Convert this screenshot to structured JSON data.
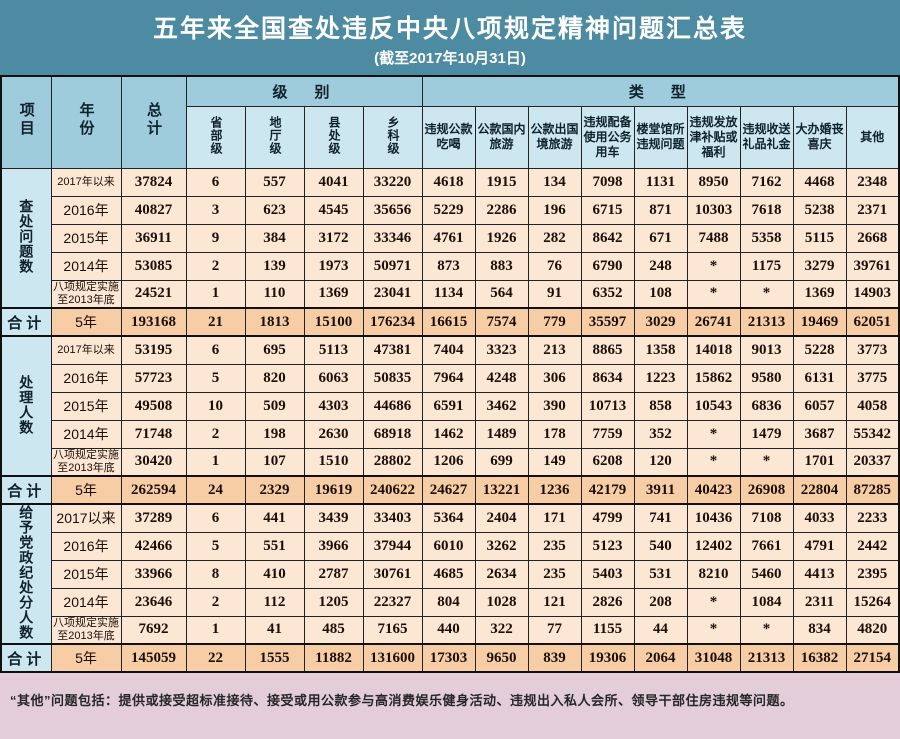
{
  "title": "五年来全国查处违反中央八项规定精神问题汇总表",
  "subtitle": "(截至2017年10月31日)",
  "header": {
    "item": "项目",
    "year": "年份",
    "total": "总计",
    "level_group": "级　别",
    "type_group": "类　型",
    "level_cols": [
      "省部级",
      "地厅级",
      "县处级",
      "乡科级"
    ],
    "type_cols": [
      "违规公款吃喝",
      "公款国内旅游",
      "公款出国境旅游",
      "违规配备使用公务用车",
      "楼堂馆所违规问题",
      "违规发放津补贴或福利",
      "违规收送礼品礼金",
      "大办婚丧喜庆",
      "其他"
    ]
  },
  "blocks": [
    {
      "label": "查处问题数",
      "rows": [
        {
          "year": "2017年以来",
          "values": [
            "37824",
            "6",
            "557",
            "4041",
            "33220",
            "4618",
            "1915",
            "134",
            "7098",
            "1131",
            "8950",
            "7162",
            "4468",
            "2348"
          ]
        },
        {
          "year": "2016年",
          "values": [
            "40827",
            "3",
            "623",
            "4545",
            "35656",
            "5229",
            "2286",
            "196",
            "6715",
            "871",
            "10303",
            "7618",
            "5238",
            "2371"
          ]
        },
        {
          "year": "2015年",
          "values": [
            "36911",
            "9",
            "384",
            "3172",
            "33346",
            "4761",
            "1926",
            "282",
            "8642",
            "671",
            "7488",
            "5358",
            "5115",
            "2668"
          ]
        },
        {
          "year": "2014年",
          "values": [
            "53085",
            "2",
            "139",
            "1973",
            "50971",
            "873",
            "883",
            "76",
            "6790",
            "248",
            "*",
            "1175",
            "3279",
            "39761"
          ]
        },
        {
          "year": "八项规定实施至2013年底",
          "values": [
            "24521",
            "1",
            "110",
            "1369",
            "23041",
            "1134",
            "564",
            "91",
            "6352",
            "108",
            "*",
            "*",
            "1369",
            "14903"
          ]
        }
      ],
      "total_row": {
        "label": "合计",
        "year": "5年",
        "values": [
          "193168",
          "21",
          "1813",
          "15100",
          "176234",
          "16615",
          "7574",
          "779",
          "35597",
          "3029",
          "26741",
          "21313",
          "19469",
          "62051"
        ]
      }
    },
    {
      "label": "处理人数",
      "rows": [
        {
          "year": "2017年以来",
          "values": [
            "53195",
            "6",
            "695",
            "5113",
            "47381",
            "7404",
            "3323",
            "213",
            "8865",
            "1358",
            "14018",
            "9013",
            "5228",
            "3773"
          ]
        },
        {
          "year": "2016年",
          "values": [
            "57723",
            "5",
            "820",
            "6063",
            "50835",
            "7964",
            "4248",
            "306",
            "8634",
            "1223",
            "15862",
            "9580",
            "6131",
            "3775"
          ]
        },
        {
          "year": "2015年",
          "values": [
            "49508",
            "10",
            "509",
            "4303",
            "44686",
            "6591",
            "3462",
            "390",
            "10713",
            "858",
            "10543",
            "6836",
            "6057",
            "4058"
          ]
        },
        {
          "year": "2014年",
          "values": [
            "71748",
            "2",
            "198",
            "2630",
            "68918",
            "1462",
            "1489",
            "178",
            "7759",
            "352",
            "*",
            "1479",
            "3687",
            "55342"
          ]
        },
        {
          "year": "八项规定实施至2013年底",
          "values": [
            "30420",
            "1",
            "107",
            "1510",
            "28802",
            "1206",
            "699",
            "149",
            "6208",
            "120",
            "*",
            "*",
            "1701",
            "20337"
          ]
        }
      ],
      "total_row": {
        "label": "合计",
        "year": "5年",
        "values": [
          "262594",
          "24",
          "2329",
          "19619",
          "240622",
          "24627",
          "13221",
          "1236",
          "42179",
          "3911",
          "40423",
          "26908",
          "22804",
          "87285"
        ]
      }
    },
    {
      "label": "给予党政纪处分人数",
      "rows": [
        {
          "year": "2017以来",
          "values": [
            "37289",
            "6",
            "441",
            "3439",
            "33403",
            "5364",
            "2404",
            "171",
            "4799",
            "741",
            "10436",
            "7108",
            "4033",
            "2233"
          ]
        },
        {
          "year": "2016年",
          "values": [
            "42466",
            "5",
            "551",
            "3966",
            "37944",
            "6010",
            "3262",
            "235",
            "5123",
            "540",
            "12402",
            "7661",
            "4791",
            "2442"
          ]
        },
        {
          "year": "2015年",
          "values": [
            "33966",
            "8",
            "410",
            "2787",
            "30761",
            "4685",
            "2634",
            "235",
            "5403",
            "531",
            "8210",
            "5460",
            "4413",
            "2395"
          ]
        },
        {
          "year": "2014年",
          "values": [
            "23646",
            "2",
            "112",
            "1205",
            "22327",
            "804",
            "1028",
            "121",
            "2826",
            "208",
            "*",
            "1084",
            "2311",
            "15264"
          ]
        },
        {
          "year": "八项规定实施至2013年底",
          "values": [
            "7692",
            "1",
            "41",
            "485",
            "7165",
            "440",
            "322",
            "77",
            "1155",
            "44",
            "*",
            "*",
            "834",
            "4820"
          ]
        }
      ],
      "total_row": {
        "label": "合计",
        "year": "5年",
        "values": [
          "145059",
          "22",
          "1555",
          "11882",
          "131600",
          "17303",
          "9650",
          "839",
          "19306",
          "2064",
          "31048",
          "21313",
          "16382",
          "27154"
        ]
      }
    }
  ],
  "footnote": "“其他”问题包括：提供或接受超标准接待、接受或用公款参与高消费娱乐健身活动、违规出入私人会所、领导干部住房违规等问题。"
}
